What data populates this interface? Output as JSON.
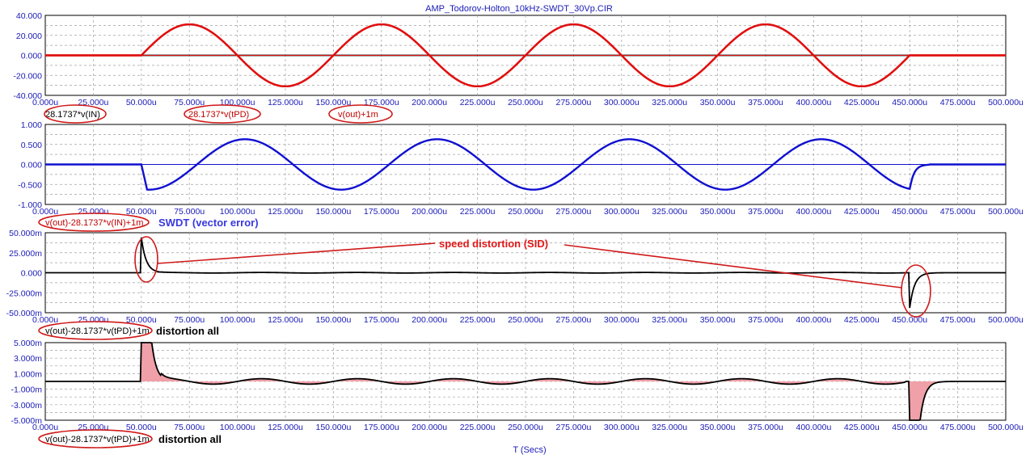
{
  "title": "AMP_Todorov-Holton_10kHz-SWDT_30Vp.CIR",
  "x_axis_label": "T (Secs)",
  "colors": {
    "frame": "#000000",
    "grid": "#a0a0a0",
    "tick_text": "#1a1ab8",
    "red_trace": "#e01010",
    "blue_trace": "#1010d0",
    "black_trace": "#000000",
    "fill_pink": "#f0a0a8",
    "ellipse": "#d01818"
  },
  "x_ticks": [
    "0.000u",
    "25.000u",
    "50.000u",
    "75.000u",
    "100.000u",
    "125.000u",
    "150.000u",
    "175.000u",
    "200.000u",
    "225.000u",
    "250.000u",
    "275.000u",
    "300.000u",
    "325.000u",
    "350.000u",
    "375.000u",
    "400.000u",
    "425.000u",
    "450.000u",
    "475.000u",
    "500.000u"
  ],
  "chart_data": [
    {
      "type": "line",
      "xlim": [
        0,
        500
      ],
      "x_unit": "u",
      "ylim": [
        -40,
        40
      ],
      "y_ticks": [
        "40.000",
        "20.000",
        "0.000",
        "-20.000",
        "-40.000"
      ],
      "series": [
        {
          "name": "28.1737*v(IN)",
          "color": "#000000",
          "form": "zero"
        },
        {
          "name": "28.1737*v(tPD)",
          "color": "#e01010",
          "form": "sine",
          "amplitude": 31,
          "freq_khz": 10,
          "start": 50,
          "end": 450,
          "phase": "sin"
        },
        {
          "name": "v(out)+1m",
          "color": "#e01010",
          "form": "sine",
          "amplitude": 31,
          "freq_khz": 10,
          "start": 50,
          "end": 450,
          "phase": "sin"
        }
      ]
    },
    {
      "type": "line",
      "xlim": [
        0,
        500
      ],
      "ylim": [
        -1,
        1
      ],
      "y_ticks": [
        "1.000",
        "0.500",
        "0.000",
        "-0.500",
        "-1.000"
      ],
      "annotation": "SWDT (vector error)",
      "series": [
        {
          "name": "v(out)-28.1737*v(IN)+1m",
          "color": "#1010d0",
          "form": "neg-cos",
          "amplitude": 0.63,
          "freq_khz": 10,
          "start": 50,
          "end": 450
        }
      ]
    },
    {
      "type": "line",
      "xlim": [
        0,
        500
      ],
      "ylim": [
        -50,
        50
      ],
      "y_ticks": [
        "50.000m",
        "25.000m",
        "0.000",
        "-25.000m",
        "-50.000m"
      ],
      "annotation": "speed distortion (SID)",
      "series": [
        {
          "name": "v(out)-28.1737*v(tPD)+1m",
          "color": "#000000",
          "form": "spikes",
          "spike_start": 44,
          "spike_end": -44,
          "decay_us": 2.5
        }
      ],
      "label_note": "distortion all"
    },
    {
      "type": "area",
      "xlim": [
        0,
        500
      ],
      "ylim": [
        -5,
        5
      ],
      "y_ticks": [
        "5.000m",
        "3.000m",
        "1.000m",
        "-1.000m",
        "-3.000m",
        "-5.000m"
      ],
      "series": [
        {
          "name": "v(out)-28.1737*v(tPD)+1m",
          "color": "#000000",
          "form": "spikes",
          "spike_start": 44,
          "spike_end": -44,
          "decay_us": 2.5
        }
      ],
      "label_note": "distortion all"
    }
  ],
  "labels": {
    "p1_a": "28.1737*v(IN)",
    "p1_b": "28.1737*v(tPD)",
    "p1_c": "v(out)+1m",
    "p2_a": "v(out)-28.1737*v(IN)+1m",
    "p2_ann": "SWDT (vector error)",
    "p3_a": "v(out)-28.1737*v(tPD)+1m",
    "p3_ann": "distortion all",
    "p3_sid": "speed distortion (SID)",
    "p4_a": "v(out)-28.1737*v(tPD)+1m",
    "p4_ann": "distortion all"
  }
}
